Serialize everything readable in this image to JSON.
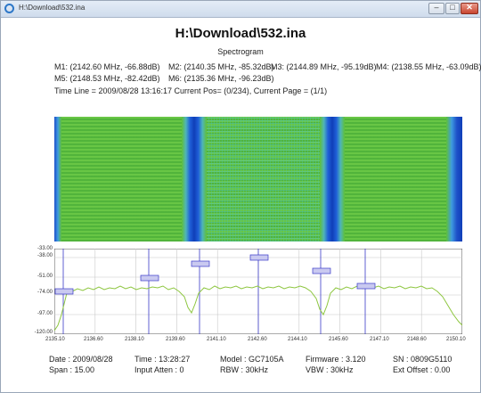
{
  "window": {
    "title": "H:\\Download\\532.ina",
    "buttons": {
      "minimize": "–",
      "maximize": "□",
      "close": "✕"
    }
  },
  "document": {
    "title": "H:\\Download\\532.ina",
    "subtitle": "Spectrogram",
    "markers": [
      "M1: (2142.60 MHz, -66.88dB)",
      "M2: (2140.35 MHz, -85.32dB)",
      "M3: (2144.89 MHz, -95.19dB)",
      "M4: (2138.55 MHz, -63.09dB)",
      "M5: (2148.53 MHz, -82.42dB)",
      "M6: (2135.36 MHz, -96.23dB)"
    ],
    "timeline": "Time Line = 2009/08/28 13:16:17 Current Pos= (0/234), Current Page = (1/1)"
  },
  "spectrum": {
    "y_labels": [
      "-33.00",
      "-38.00",
      "-51.00",
      "-74.00",
      "-97.00",
      "-120.00"
    ],
    "x_labels": [
      "2135.10",
      "2136.60",
      "2138.10",
      "2139.60",
      "2141.10",
      "2142.60",
      "2144.10",
      "2145.60",
      "2147.10",
      "2148.60",
      "2150.10"
    ],
    "colors": {
      "trace": "#8dc63f",
      "grid": "#c8c8c8",
      "marker_line": "#3a3ac8",
      "spectro_bg": "#5fbf3a",
      "spectro_gap": "#1f5fd8"
    }
  },
  "info": {
    "date": "Date : 2009/08/28",
    "span": "Span : 15.00",
    "time": "Time : 13:28:27",
    "input_atten": "Input Atten : 0",
    "model": "Model : GC7105A",
    "rbw": "RBW : 30kHz",
    "firmware": "Firmware : 3.120",
    "vbw": "VBW : 30kHz",
    "sn": "SN : 0809G5110",
    "ext_offset": "Ext Offset : 0.00"
  }
}
